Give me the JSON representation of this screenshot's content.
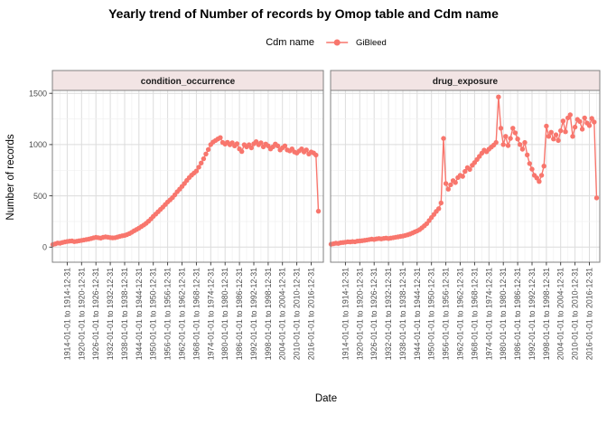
{
  "title": "Yearly trend of Number of records by Omop table and Cdm name",
  "legend": {
    "title": "Cdm name",
    "series_label": "GiBleed",
    "color": "#F8766D"
  },
  "axes": {
    "x_label": "Date",
    "y_label": "Number of records"
  },
  "colors": {
    "series": "#F8766D",
    "strip_fill": "#F2E4E4",
    "strip_border": "#808080",
    "panel_border": "#808080",
    "grid_major": "#DCDCDC",
    "grid_minor": "#F0F0F0",
    "tick": "#333333",
    "tick_label": "#4D4D4D"
  },
  "chart_data": {
    "type": "line",
    "title": "Yearly trend of Number of records by Omop table and Cdm name",
    "xlabel": "Date",
    "ylabel": "Number of records",
    "series_name": "GiBleed",
    "legend_position": "top",
    "grid": true,
    "ylim": [
      0,
      1500
    ],
    "y_ticks": [
      0,
      500,
      1000,
      1500
    ],
    "x_tick_years": [
      1914,
      1920,
      1926,
      1932,
      1938,
      1944,
      1950,
      1956,
      1962,
      1968,
      1974,
      1980,
      1986,
      1992,
      1998,
      2004,
      2010,
      2016
    ],
    "x_tick_labels": [
      "1914-01-01 to 1914-12-31",
      "1920-01-01 to 1920-12-31",
      "1926-01-01 to 1926-12-31",
      "1932-01-01 to 1932-12-31",
      "1938-01-01 to 1938-12-31",
      "1944-01-01 to 1944-12-31",
      "1950-01-01 to 1950-12-31",
      "1956-01-01 to 1956-12-31",
      "1962-01-01 to 1962-12-31",
      "1968-01-01 to 1968-12-31",
      "1974-01-01 to 1974-12-31",
      "1980-01-01 to 1980-12-31",
      "1986-01-01 to 1986-12-31",
      "1992-01-01 to 1992-12-31",
      "1998-01-01 to 1998-12-31",
      "2004-01-01 to 2004-12-31",
      "2010-01-01 to 2010-12-31",
      "2016-01-01 to 2016-12-31"
    ],
    "years": [
      1908,
      1909,
      1910,
      1911,
      1912,
      1913,
      1914,
      1915,
      1916,
      1917,
      1918,
      1919,
      1920,
      1921,
      1922,
      1923,
      1924,
      1925,
      1926,
      1927,
      1928,
      1929,
      1930,
      1931,
      1932,
      1933,
      1934,
      1935,
      1936,
      1937,
      1938,
      1939,
      1940,
      1941,
      1942,
      1943,
      1944,
      1945,
      1946,
      1947,
      1948,
      1949,
      1950,
      1951,
      1952,
      1953,
      1954,
      1955,
      1956,
      1957,
      1958,
      1959,
      1960,
      1961,
      1962,
      1963,
      1964,
      1965,
      1966,
      1967,
      1968,
      1969,
      1970,
      1971,
      1972,
      1973,
      1974,
      1975,
      1976,
      1977,
      1978,
      1979,
      1980,
      1981,
      1982,
      1983,
      1984,
      1985,
      1986,
      1987,
      1988,
      1989,
      1990,
      1991,
      1992,
      1993,
      1994,
      1995,
      1996,
      1997,
      1998,
      1999,
      2000,
      2001,
      2002,
      2003,
      2004,
      2005,
      2006,
      2007,
      2008,
      2009,
      2010,
      2011,
      2012,
      2013,
      2014,
      2015,
      2016,
      2017,
      2018,
      2019
    ],
    "facets": [
      {
        "label": "condition_occurrence",
        "values": [
          25,
          32,
          40,
          38,
          45,
          50,
          55,
          58,
          60,
          54,
          57,
          62,
          65,
          70,
          74,
          78,
          84,
          90,
          95,
          92,
          88,
          95,
          100,
          97,
          93,
          90,
          92,
          98,
          105,
          110,
          115,
          122,
          132,
          145,
          160,
          172,
          185,
          200,
          215,
          232,
          252,
          275,
          300,
          322,
          345,
          368,
          390,
          415,
          440,
          460,
          482,
          510,
          540,
          565,
          592,
          620,
          650,
          678,
          702,
          722,
          742,
          780,
          820,
          862,
          908,
          952,
          1000,
          1025,
          1040,
          1055,
          1068,
          1020,
          1005,
          1022,
          998,
          1018,
          988,
          1008,
          958,
          932,
          998,
          978,
          998,
          968,
          1008,
          1028,
          998,
          1018,
          978,
          1005,
          988,
          958,
          978,
          1005,
          988,
          948,
          968,
          988,
          948,
          938,
          958,
          928,
          918,
          938,
          958,
          928,
          948,
          908,
          928,
          918,
          898,
          350
        ]
      },
      {
        "label": "drug_exposure",
        "values": [
          28,
          33,
          38,
          36,
          42,
          45,
          48,
          52,
          50,
          54,
          52,
          58,
          60,
          63,
          66,
          70,
          74,
          78,
          75,
          80,
          84,
          80,
          85,
          88,
          84,
          88,
          92,
          96,
          100,
          104,
          108,
          114,
          120,
          128,
          138,
          148,
          158,
          170,
          188,
          208,
          228,
          258,
          288,
          318,
          348,
          375,
          430,
          1060,
          620,
          565,
          608,
          648,
          630,
          678,
          700,
          690,
          738,
          775,
          758,
          798,
          825,
          855,
          885,
          915,
          945,
          930,
          955,
          975,
          995,
          1020,
          1465,
          1160,
          1000,
          1080,
          990,
          1060,
          1160,
          1115,
          1055,
          1000,
          955,
          1020,
          900,
          815,
          760,
          700,
          675,
          640,
          700,
          790,
          1180,
          1080,
          1120,
          1055,
          1095,
          1040,
          1135,
          1230,
          1125,
          1260,
          1290,
          1080,
          1170,
          1245,
          1225,
          1150,
          1260,
          1210,
          1185,
          1255,
          1220,
          480
        ]
      }
    ]
  }
}
